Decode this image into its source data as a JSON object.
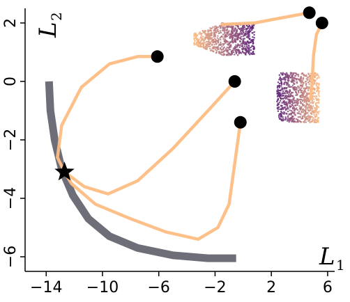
{
  "chart_data": {
    "type": "scatter",
    "title": "",
    "xlabel": "L",
    "xlabel_sub": "1",
    "ylabel": "L",
    "ylabel_sub": "2",
    "xlim": [
      -15.5,
      6.5
    ],
    "ylim": [
      -6.5,
      2.5
    ],
    "xticks": [
      -14,
      -10,
      -6,
      -2,
      2,
      6
    ],
    "yticks": [
      -6,
      -4,
      -2,
      0,
      2
    ],
    "xtick_labels": [
      "−14",
      "−10",
      "−6",
      "−2",
      "2",
      "6"
    ],
    "ytick_labels": [
      "−6",
      "−4",
      "−2",
      "0",
      "2"
    ],
    "grid": false,
    "colors": {
      "boundary": "#6e6e78",
      "trajectory": "#fdbd83",
      "marker": "#000000",
      "cloud_start": "#5a1f78",
      "cloud_end": "#fdbd83"
    },
    "boundary_curve": [
      [
        -13.8,
        0
      ],
      [
        -13.7,
        -1.0
      ],
      [
        -13.4,
        -2.0
      ],
      [
        -12.9,
        -3.0
      ],
      [
        -12.1,
        -3.9
      ],
      [
        -11.0,
        -4.7
      ],
      [
        -9.5,
        -5.3
      ],
      [
        -7.5,
        -5.7
      ],
      [
        -5.0,
        -5.95
      ],
      [
        -2.5,
        -6.05
      ],
      [
        -0.5,
        -6.05
      ]
    ],
    "star": {
      "x": -12.7,
      "y": -3.1
    },
    "start_points": [
      {
        "x": -6.1,
        "y": 0.85
      },
      {
        "x": -0.6,
        "y": 0.0
      },
      {
        "x": -0.2,
        "y": -1.4
      },
      {
        "x": 4.7,
        "y": 2.35
      },
      {
        "x": 5.6,
        "y": 2.0
      }
    ],
    "trajectories": [
      [
        [
          -6.1,
          0.85
        ],
        [
          -7.5,
          0.85
        ],
        [
          -9.5,
          0.6
        ],
        [
          -11.5,
          -0.2
        ],
        [
          -12.9,
          -1.5
        ],
        [
          -13.2,
          -2.6
        ],
        [
          -12.7,
          -3.1
        ]
      ],
      [
        [
          -0.6,
          0.0
        ],
        [
          -2.5,
          -1.0
        ],
        [
          -5.0,
          -2.3
        ],
        [
          -7.5,
          -3.4
        ],
        [
          -9.6,
          -3.85
        ],
        [
          -11.3,
          -3.6
        ],
        [
          -12.7,
          -3.1
        ]
      ],
      [
        [
          -0.2,
          -1.4
        ],
        [
          -0.6,
          -2.8
        ],
        [
          -1.0,
          -4.2
        ],
        [
          -1.8,
          -5.0
        ],
        [
          -3.2,
          -5.4
        ],
        [
          -5.5,
          -5.15
        ],
        [
          -8.0,
          -4.7
        ],
        [
          -10.5,
          -4.2
        ],
        [
          -12.2,
          -3.5
        ],
        [
          -12.7,
          -3.1
        ]
      ],
      [
        [
          4.7,
          2.35
        ],
        [
          3.0,
          2.2
        ],
        [
          0.8,
          2.0
        ],
        [
          -1.5,
          1.95
        ]
      ],
      [
        [
          5.6,
          2.0
        ],
        [
          5.2,
          1.6
        ],
        [
          5.0,
          0.9
        ],
        [
          4.9,
          0.0
        ],
        [
          4.8,
          -0.6
        ]
      ]
    ],
    "point_clouds": [
      {
        "x_range": [
          -3.5,
          0.8
        ],
        "y_range": [
          0.9,
          2.0
        ],
        "dense_x_start": -1.5
      },
      {
        "x_range": [
          2.4,
          5.4
        ],
        "y_range": [
          -1.4,
          0.3
        ],
        "dense_x_start": 2.6
      }
    ]
  }
}
